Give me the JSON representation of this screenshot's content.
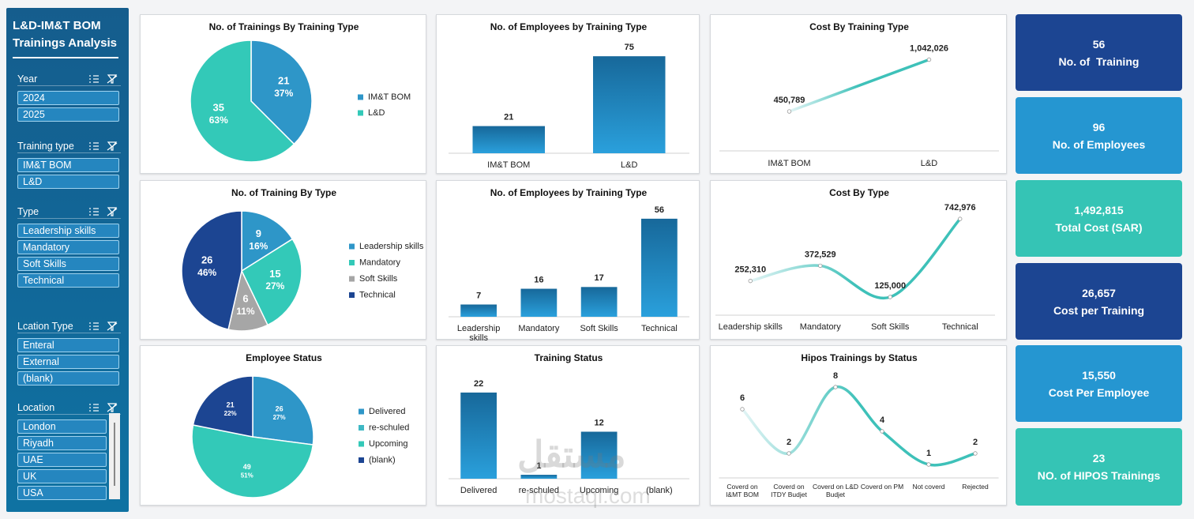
{
  "sidebar": {
    "title": "L&D-IM&T BOM Trainings Analysis",
    "slicers": [
      {
        "title": "Year",
        "items": [
          "2024",
          "2025"
        ]
      },
      {
        "title": "Training type",
        "items": [
          "IM&T BOM",
          "L&D"
        ]
      },
      {
        "title": "Type",
        "items": [
          "Leadership skills",
          "Mandatory",
          "Soft Skills",
          "Technical"
        ]
      },
      {
        "title": "Lcation Type",
        "items": [
          "Enteral",
          "External",
          "(blank)"
        ]
      },
      {
        "title": "Location",
        "items": [
          "London",
          "Riyadh",
          "UAE",
          "UK",
          "USA"
        ]
      }
    ]
  },
  "chart_data": [
    {
      "type": "pie",
      "title": "No. of Trainings By Training Type",
      "categories": [
        "IM&T BOM",
        "L&D"
      ],
      "values": [
        21,
        35
      ],
      "percent_labels": [
        "37%",
        "63%"
      ],
      "colors": [
        "#2e96c8",
        "#33c9b8"
      ],
      "legend": "right"
    },
    {
      "type": "bar",
      "title": "No. of Employees by Training Type",
      "categories": [
        "IM&T BOM",
        "L&D"
      ],
      "values": [
        21,
        75
      ],
      "ylim": [
        0,
        80
      ],
      "color": "#2aa0dc"
    },
    {
      "type": "line",
      "title": "Cost By Training Type",
      "categories": [
        "IM&T BOM",
        "L&D"
      ],
      "values": [
        450789,
        1042026
      ],
      "value_labels": [
        "450,789",
        "1,042,026"
      ],
      "ylim": [
        0,
        1200000
      ],
      "color": "#3ec1b9"
    },
    {
      "type": "pie",
      "title": "No. of Training By Type",
      "categories": [
        "Leadership skills",
        "Mandatory",
        "Soft Skills",
        "Technical"
      ],
      "values": [
        9,
        15,
        6,
        26
      ],
      "percent_labels": [
        "16%",
        "27%",
        "11%",
        "46%"
      ],
      "colors": [
        "#2e96c8",
        "#33c9b8",
        "#a6a6a6",
        "#1c4592"
      ],
      "legend": "right"
    },
    {
      "type": "bar",
      "title": "No. of Employees by Training Type",
      "categories": [
        "Leadership skills",
        "Mandatory",
        "Soft Skills",
        "Technical"
      ],
      "values": [
        7,
        16,
        17,
        56
      ],
      "ylim": [
        0,
        60
      ],
      "color": "#2aa0dc"
    },
    {
      "type": "line",
      "title": "Cost By Type",
      "categories": [
        "Leadership skills",
        "Mandatory",
        "Soft Skills",
        "Technical"
      ],
      "values": [
        252310,
        372529,
        125000,
        742976
      ],
      "value_labels": [
        "252,310",
        "372,529",
        "125,000",
        "742,976"
      ],
      "ylim": [
        0,
        800000
      ],
      "color": "#3ec1b9"
    },
    {
      "type": "pie",
      "title": "Employee Status",
      "categories": [
        "Delivered",
        "re-schuled",
        "Upcoming",
        "(blank)"
      ],
      "values": [
        26,
        null,
        49,
        21
      ],
      "percent_labels": [
        "27%",
        null,
        "51%",
        "22%"
      ],
      "colors": [
        "#2e96c8",
        "#3fb8c4",
        "#33c9b8",
        "#1c4592"
      ],
      "legend": "right"
    },
    {
      "type": "bar",
      "title": "Training Status",
      "categories": [
        "Delivered",
        "re-schuled",
        "Upcoming",
        "(blank)"
      ],
      "values": [
        22,
        1,
        12,
        null
      ],
      "ylim": [
        0,
        24
      ],
      "color": "#2aa0dc"
    },
    {
      "type": "line",
      "title": "Hipos Trainings by Status",
      "categories": [
        "Coverd on I&MT BOM",
        "Coverd on ITDY Budjet",
        "Coverd on L&D Budjet",
        "Coverd on PM",
        "Not coverd",
        "Rejected"
      ],
      "values": [
        6,
        2,
        8,
        4,
        1,
        2
      ],
      "ylim": [
        0,
        9
      ],
      "color": "#3ec1b9"
    }
  ],
  "kpis": [
    {
      "value": 56,
      "label": "No. of  Training",
      "color": "#1c4592"
    },
    {
      "value": 96,
      "label": "No. of Employees",
      "color": "#2596d1"
    },
    {
      "value": 1492815,
      "value_label": "1,492,815",
      "label": "Total Cost (SAR)",
      "color": "#35c4b5"
    },
    {
      "value": 26657,
      "value_label": "26,657",
      "label": "Cost per Training",
      "color": "#1c4592"
    },
    {
      "value": 15550,
      "value_label": "15,550",
      "label": "Cost Per Employee",
      "color": "#2596d1"
    },
    {
      "value": 23,
      "label": "NO. of HIPOS Trainings",
      "color": "#35c4b5"
    }
  ],
  "watermark": [
    "مستقل",
    "mostaql.com"
  ]
}
